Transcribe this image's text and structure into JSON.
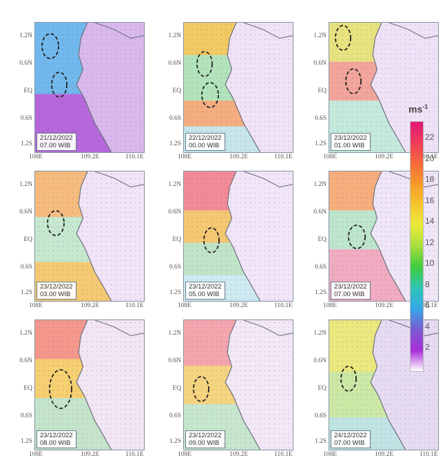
{
  "panels": [
    {
      "date": "21/12/2022",
      "time": "07.00 WIB"
    },
    {
      "date": "22/12/2022",
      "time": "00.00 WIB"
    },
    {
      "date": "23/12/2022",
      "time": "01.00 WIB"
    },
    {
      "date": "23/12/2022",
      "time": "03.00 WIB"
    },
    {
      "date": "23/12/2022",
      "time": "05.00 WIB"
    },
    {
      "date": "23/12/2022",
      "time": "07.00 WIB"
    },
    {
      "date": "23/12/2022",
      "time": "08.00 WIB"
    },
    {
      "date": "23/12/2022",
      "time": "09.00 WIB"
    },
    {
      "date": "24/12/2022",
      "time": "07.00 WIB"
    }
  ],
  "lat_labels": [
    "1.2N",
    "0.6N",
    "EQ",
    "0.6S",
    "1.2S"
  ],
  "lon_labels": [
    "108E",
    "109.2E",
    "110.1E"
  ],
  "colorbar": {
    "unit": "ms",
    "unit_exp": "-1",
    "ticks": [
      "22",
      "20",
      "18",
      "16",
      "14",
      "12",
      "10",
      "8",
      "6",
      "4",
      "2"
    ],
    "colors": [
      "#e0187a",
      "#ee3b5a",
      "#f66a3a",
      "#f79a2a",
      "#f6c630",
      "#eaeb3a",
      "#a6df3e",
      "#3ecb3e",
      "#30c4b8",
      "#35a6e8",
      "#7a5ad0",
      "#a82fd8",
      "#ffffff"
    ]
  }
}
